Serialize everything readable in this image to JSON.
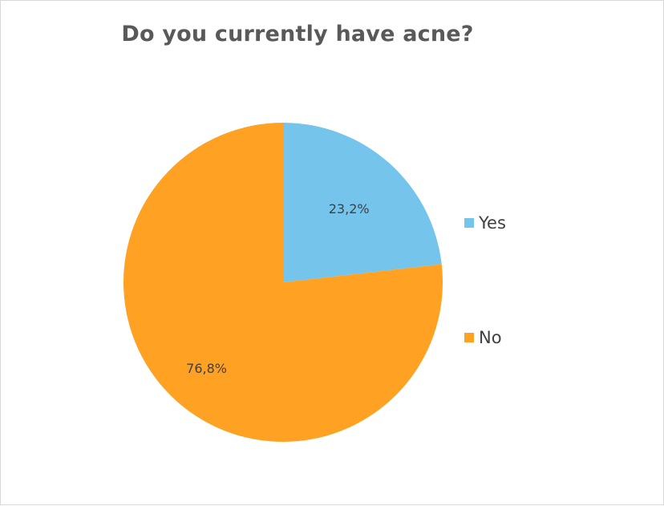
{
  "chart_data": {
    "type": "pie",
    "title": "Do you currently have acne?",
    "categories": [
      "Yes",
      "No"
    ],
    "values": [
      23.2,
      76.8
    ],
    "data_labels": [
      "23,2%",
      "76,8%"
    ],
    "colors": [
      "#75C4EC",
      "#FFA122"
    ],
    "legend_position": "right"
  }
}
